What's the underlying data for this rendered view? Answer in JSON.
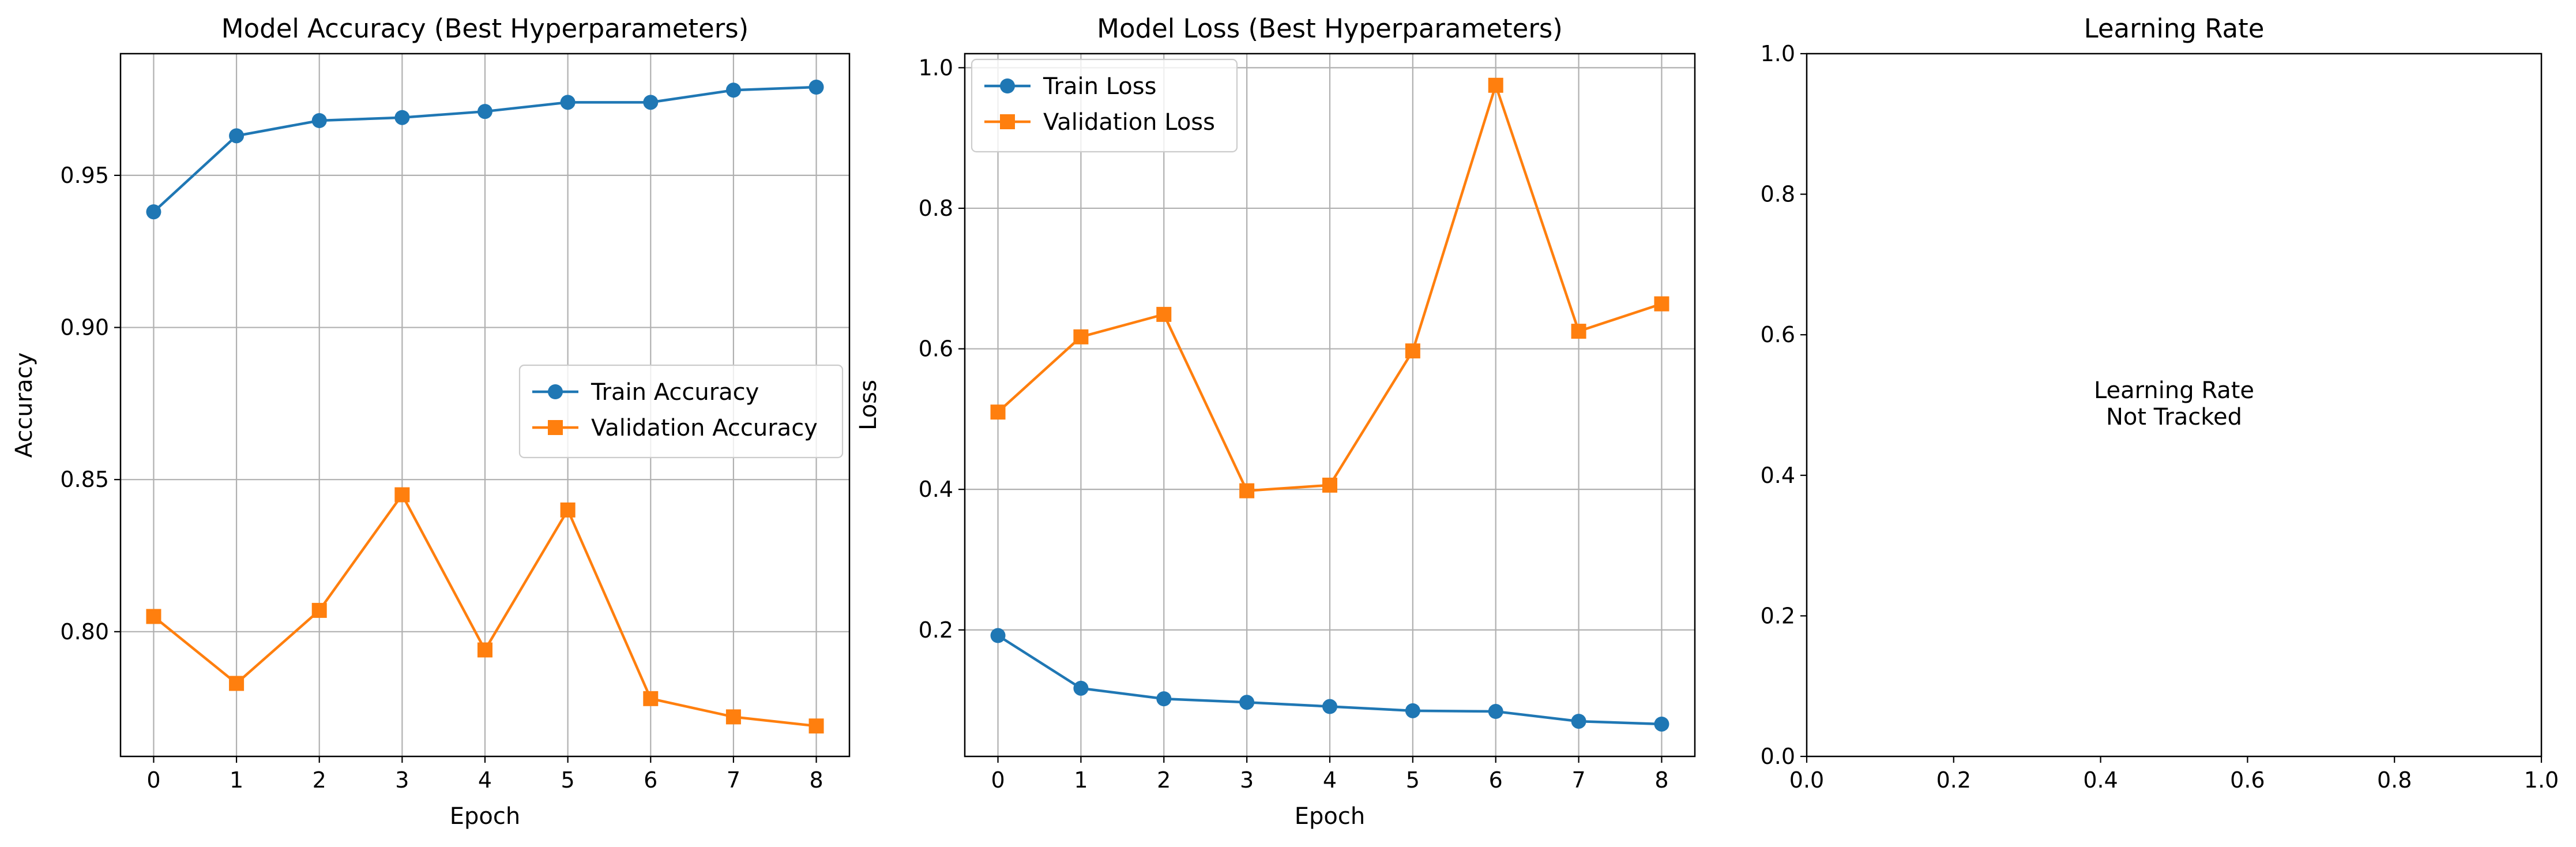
{
  "chart_data": [
    {
      "type": "line",
      "title": "Model Accuracy (Best Hyperparameters)",
      "xlabel": "Epoch",
      "ylabel": "Accuracy",
      "x": [
        0,
        1,
        2,
        3,
        4,
        5,
        6,
        7,
        8
      ],
      "xlim": [
        -0.4,
        8.4
      ],
      "ylim": [
        0.759,
        0.99
      ],
      "xticks": [
        0,
        1,
        2,
        3,
        4,
        5,
        6,
        7,
        8
      ],
      "yticks": [
        0.8,
        0.85,
        0.9,
        0.95
      ],
      "ytick_labels": [
        "0.80",
        "0.85",
        "0.90",
        "0.95"
      ],
      "grid": true,
      "legend_position": "center-right",
      "series": [
        {
          "name": "Train Accuracy",
          "color": "#1f77b4",
          "marker": "circle",
          "values": [
            0.938,
            0.963,
            0.968,
            0.969,
            0.971,
            0.974,
            0.974,
            0.978,
            0.979
          ]
        },
        {
          "name": "Validation Accuracy",
          "color": "#ff7f0e",
          "marker": "square",
          "values": [
            0.805,
            0.783,
            0.807,
            0.845,
            0.794,
            0.84,
            0.778,
            0.772,
            0.769
          ]
        }
      ]
    },
    {
      "type": "line",
      "title": "Model Loss (Best Hyperparameters)",
      "xlabel": "Epoch",
      "ylabel": "Loss",
      "x": [
        0,
        1,
        2,
        3,
        4,
        5,
        6,
        7,
        8
      ],
      "xlim": [
        -0.4,
        8.4
      ],
      "ylim": [
        0.02,
        1.02
      ],
      "xticks": [
        0,
        1,
        2,
        3,
        4,
        5,
        6,
        7,
        8
      ],
      "yticks": [
        0.2,
        0.4,
        0.6,
        0.8,
        1.0
      ],
      "ytick_labels": [
        "0.2",
        "0.4",
        "0.6",
        "0.8",
        "1.0"
      ],
      "grid": true,
      "legend_position": "upper-left",
      "series": [
        {
          "name": "Train Loss",
          "color": "#1f77b4",
          "marker": "circle",
          "values": [
            0.192,
            0.117,
            0.102,
            0.097,
            0.091,
            0.085,
            0.084,
            0.07,
            0.066
          ]
        },
        {
          "name": "Validation Loss",
          "color": "#ff7f0e",
          "marker": "square",
          "values": [
            0.51,
            0.617,
            0.649,
            0.398,
            0.406,
            0.597,
            0.975,
            0.625,
            0.664
          ]
        }
      ]
    },
    {
      "type": "line",
      "title": "Learning Rate",
      "xlabel": "",
      "ylabel": "",
      "xlim": [
        0.0,
        1.0
      ],
      "ylim": [
        0.0,
        1.0
      ],
      "xticks": [
        0.0,
        0.2,
        0.4,
        0.6,
        0.8,
        1.0
      ],
      "xtick_labels": [
        "0.0",
        "0.2",
        "0.4",
        "0.6",
        "0.8",
        "1.0"
      ],
      "yticks": [
        0.0,
        0.2,
        0.4,
        0.6,
        0.8,
        1.0
      ],
      "ytick_labels": [
        "0.0",
        "0.2",
        "0.4",
        "0.6",
        "0.8",
        "1.0"
      ],
      "grid": false,
      "series": [],
      "annotation": [
        "Learning Rate",
        "Not Tracked"
      ]
    }
  ]
}
